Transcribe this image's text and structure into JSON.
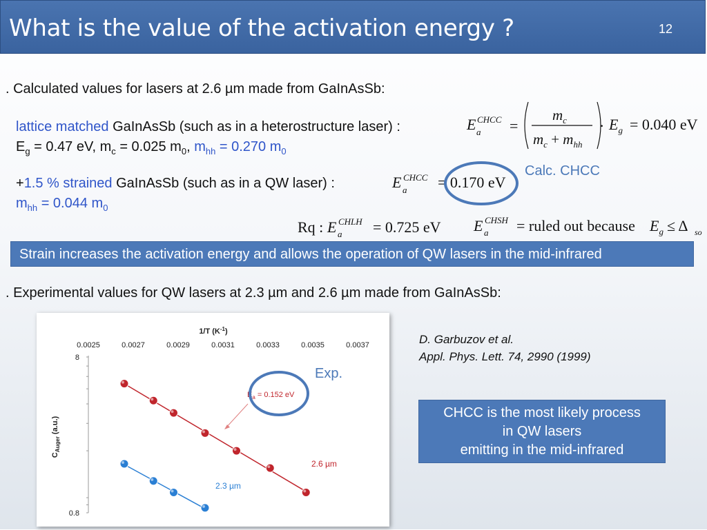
{
  "slide": {
    "title": "What is the value of the activation energy ?",
    "number": "12"
  },
  "bullet1": ". Calculated values for lasers at 2.6 µm made from GaInAsSb:",
  "lattice": {
    "prefix": "lattice matched",
    "rest": " GaInAsSb (such as in a heterostructure laser) :",
    "line2": {
      "eg": "E",
      "eg_sub": "g",
      "eg_val": " = 0.47 eV, m",
      "mc_sub": "c",
      "mc_val": " = 0.025 m",
      "m0_sub": "0",
      "sep": ", ",
      "mhh": "m",
      "mhh_sub": "hh",
      "mhh_val": " = 0.270 m",
      "m0b_sub": "0"
    },
    "formula": {
      "E": "E",
      "sup": "CHCC",
      "sub": "a",
      "eq": "=",
      "num": "m",
      "num_sub": "c",
      "den1": "m",
      "den1_sub": "c",
      "plus": " + ",
      "den2": "m",
      "den2_sub": "hh",
      "dot": "·",
      "Eg": "E",
      "Eg_sub": "g",
      "result": "= 0.040 eV"
    }
  },
  "strained": {
    "plus": "+",
    "prefix": "1.5 % strained",
    "rest": " GaInAsSb (such as in a QW laser) :",
    "mhh": "m",
    "mhh_sub": "hh",
    "mhh_val": " = 0.044 m",
    "m0_sub": "0",
    "formula": {
      "E": "E",
      "sup": "CHCC",
      "sub": "a",
      "result": "= 0.170 eV"
    },
    "calc_label": "Calc. CHCC"
  },
  "remarks": {
    "rq": "Rq : ",
    "E1": "E",
    "E1_sup": "CHLH",
    "E1_sub": "a",
    "E1_val": "= 0.725 eV",
    "E2": "E",
    "E2_sup": "CHSH",
    "E2_sub": "a",
    "E2_val": "= ruled out because ",
    "Eg": "E",
    "Eg_sub": "g",
    "le": " ≤ Δ",
    "so": "so"
  },
  "callout": "Strain increases the activation energy and allows the operation of QW lasers in the mid-infrared",
  "bullet2": ". Experimental values for QW lasers at 2.3 µm and 2.6 µm made from GaInAsSb:",
  "reference": {
    "authors": "D. Garbuzov et al.",
    "journal": "Appl. Phys. Lett. 74, 2990 (1999)"
  },
  "exp_label": "Exp.",
  "conclusion": [
    "CHCC is the most likely process",
    "in QW lasers",
    "emitting in the mid-infrared"
  ],
  "colors": {
    "title_bar": "#3f6aa8",
    "accent_blue": "#2f55c9",
    "box_blue": "#4c79b8",
    "red_series": "#c0252c",
    "blue_series": "#2a7fd4"
  },
  "chart_data": {
    "type": "scatter",
    "title": "1/T (K-1)",
    "title_main": "1/T (K",
    "title_sup": "-1",
    "title_end": ")",
    "xlabel": "1/T (K-1)",
    "ylabel": "C",
    "ylabel_sub": "Auger",
    "ylabel_unit": " (a.u.)",
    "x_ticks": [
      "0.0025",
      "0.0027",
      "0.0029",
      "0.0031",
      "0.0033",
      "0.0035",
      "0.0037"
    ],
    "y_ticks": [
      "0.8",
      "8"
    ],
    "xlim": [
      0.0025,
      0.0037
    ],
    "ylim": [
      0.8,
      8
    ],
    "y_scale": "log",
    "x_axis_position": "top",
    "annotation": {
      "text_main": "E",
      "text_sub": "a",
      "text_val": " = 0.152 eV",
      "points_to_x": 0.003,
      "points_to_y": 2.8
    },
    "series": [
      {
        "name": "2.6 µm",
        "color": "#c0252c",
        "x": [
          0.00266,
          0.00279,
          0.00288,
          0.00302,
          0.00316,
          0.00331,
          0.00347
        ],
        "y": [
          5.4,
          4.2,
          3.5,
          2.6,
          2.0,
          1.55,
          1.08
        ]
      },
      {
        "name": "2.3 µm",
        "color": "#2a7fd4",
        "x": [
          0.00266,
          0.00279,
          0.00288,
          0.00302
        ],
        "y": [
          1.65,
          1.28,
          1.08,
          0.86
        ]
      }
    ]
  }
}
